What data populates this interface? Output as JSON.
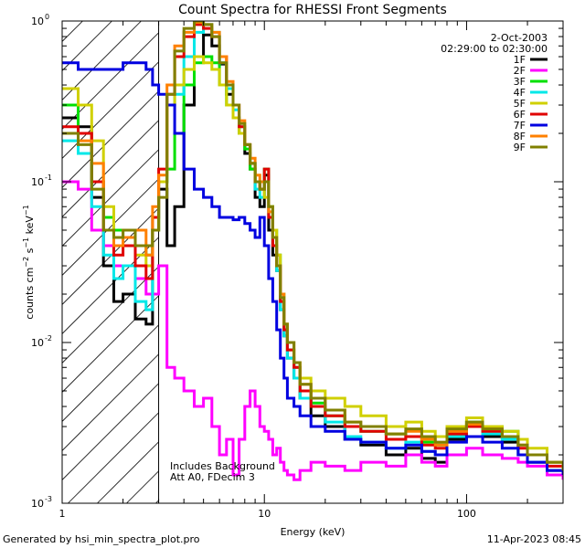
{
  "chart_data": {
    "type": "line",
    "title": "Count Spectra for RHESSI Front Segments",
    "xlabel": "Energy (keV)",
    "ylabel": "counts cm^-2 s^-1 keV^-1",
    "xscale": "log",
    "yscale": "log",
    "xlim": [
      1,
      300
    ],
    "ylim": [
      0.001,
      1
    ],
    "x_ticks": [
      {
        "value": 1,
        "label": "1"
      },
      {
        "value": 10,
        "label": "10"
      },
      {
        "value": 100,
        "label": "100"
      }
    ],
    "y_ticks": [
      {
        "value": 1,
        "base": "10",
        "exp": "0"
      },
      {
        "value": 0.1,
        "base": "10",
        "exp": "-1"
      },
      {
        "value": 0.01,
        "base": "10",
        "exp": "-2"
      },
      {
        "value": 0.001,
        "base": "10",
        "exp": "-3"
      }
    ],
    "date": "2-Oct-2003",
    "time_range": "02:29:00 to 02:30:00",
    "hatched_region_max_energy": 3,
    "annotation_lines": [
      "Includes Background",
      "Att A0, FDecim 3"
    ],
    "footer_left": "Generated by hsi_min_spectra_plot.pro",
    "footer_right": "11-Apr-2023 08:45",
    "series": [
      {
        "name": "1F",
        "color": "#000000",
        "x": [
          1.0,
          1.2,
          1.4,
          1.6,
          1.8,
          2.0,
          2.3,
          2.6,
          2.8,
          3.0,
          3.3,
          3.6,
          4.0,
          4.5,
          5.0,
          5.5,
          6.0,
          6.5,
          7.0,
          7.5,
          8.0,
          8.5,
          9.0,
          9.5,
          10,
          10.5,
          11,
          11.5,
          12,
          12.5,
          13,
          14,
          15,
          17,
          20,
          25,
          30,
          40,
          50,
          60,
          70,
          80,
          100,
          120,
          150,
          180,
          200,
          250,
          300
        ],
        "y": [
          0.25,
          0.22,
          0.08,
          0.03,
          0.018,
          0.02,
          0.014,
          0.013,
          0.05,
          0.09,
          0.04,
          0.07,
          0.3,
          0.6,
          0.82,
          0.7,
          0.54,
          0.35,
          0.25,
          0.2,
          0.15,
          0.12,
          0.08,
          0.07,
          0.11,
          0.05,
          0.035,
          0.028,
          0.016,
          0.011,
          0.008,
          0.006,
          0.0045,
          0.0035,
          0.003,
          0.0025,
          0.0023,
          0.002,
          0.0022,
          0.0019,
          0.0018,
          0.0025,
          0.003,
          0.0026,
          0.0024,
          0.002,
          0.0018,
          0.0016,
          0.0015
        ]
      },
      {
        "name": "2F",
        "color": "#ff00ff",
        "x": [
          1.0,
          1.2,
          1.4,
          1.6,
          1.8,
          2.0,
          2.3,
          2.6,
          2.8,
          3.0,
          3.3,
          3.6,
          4.0,
          4.5,
          5.0,
          5.5,
          6.0,
          6.5,
          7.0,
          7.5,
          8.0,
          8.5,
          9.0,
          9.5,
          10,
          10.5,
          11,
          11.5,
          12,
          12.5,
          13,
          14,
          15,
          17,
          20,
          25,
          30,
          40,
          50,
          60,
          70,
          80,
          100,
          120,
          150,
          180,
          200,
          250,
          300
        ],
        "y": [
          0.1,
          0.09,
          0.05,
          0.04,
          0.03,
          0.03,
          0.025,
          0.02,
          0.02,
          0.03,
          0.007,
          0.006,
          0.005,
          0.004,
          0.0045,
          0.003,
          0.002,
          0.0025,
          0.0015,
          0.0025,
          0.004,
          0.005,
          0.004,
          0.003,
          0.0028,
          0.0025,
          0.002,
          0.0022,
          0.0018,
          0.0016,
          0.0015,
          0.0014,
          0.0016,
          0.0018,
          0.0017,
          0.0016,
          0.0018,
          0.0017,
          0.002,
          0.0018,
          0.0017,
          0.002,
          0.0022,
          0.002,
          0.0019,
          0.0018,
          0.0017,
          0.0015,
          0.0014
        ]
      },
      {
        "name": "3F",
        "color": "#00e000",
        "x": [
          1.0,
          1.2,
          1.4,
          1.6,
          1.8,
          2.0,
          2.3,
          2.6,
          2.8,
          3.0,
          3.3,
          3.6,
          4.0,
          4.5,
          5.0,
          5.5,
          6.0,
          6.5,
          7.0,
          7.5,
          8.0,
          8.5,
          9.0,
          9.5,
          10,
          10.5,
          11,
          11.5,
          12,
          12.5,
          13,
          14,
          15,
          17,
          20,
          25,
          30,
          40,
          50,
          60,
          70,
          80,
          100,
          120,
          150,
          180,
          200,
          250,
          300
        ],
        "y": [
          0.3,
          0.2,
          0.1,
          0.06,
          0.05,
          0.05,
          0.04,
          0.035,
          0.05,
          0.1,
          0.12,
          0.2,
          0.4,
          0.55,
          0.6,
          0.55,
          0.4,
          0.3,
          0.25,
          0.2,
          0.16,
          0.12,
          0.1,
          0.09,
          0.12,
          0.07,
          0.05,
          0.035,
          0.02,
          0.012,
          0.009,
          0.007,
          0.005,
          0.0042,
          0.0035,
          0.003,
          0.0028,
          0.0027,
          0.0026,
          0.0024,
          0.0023,
          0.0028,
          0.0032,
          0.003,
          0.0028,
          0.0025,
          0.002,
          0.0018,
          0.0016
        ]
      },
      {
        "name": "4F",
        "color": "#00e8e8",
        "x": [
          1.0,
          1.2,
          1.4,
          1.6,
          1.8,
          2.0,
          2.3,
          2.6,
          2.8,
          3.0,
          3.3,
          3.6,
          4.0,
          4.5,
          5.0,
          5.5,
          6.0,
          6.5,
          7.0,
          7.5,
          8.0,
          8.5,
          9.0,
          9.5,
          10,
          10.5,
          11,
          11.5,
          12,
          12.5,
          13,
          14,
          15,
          17,
          20,
          25,
          30,
          40,
          50,
          60,
          70,
          80,
          100,
          120,
          150,
          180,
          200,
          250,
          300
        ],
        "y": [
          0.18,
          0.15,
          0.07,
          0.035,
          0.025,
          0.03,
          0.018,
          0.016,
          0.06,
          0.1,
          0.3,
          0.35,
          0.6,
          0.85,
          0.95,
          0.85,
          0.55,
          0.38,
          0.28,
          0.22,
          0.17,
          0.13,
          0.09,
          0.08,
          0.1,
          0.06,
          0.04,
          0.028,
          0.016,
          0.011,
          0.008,
          0.006,
          0.0045,
          0.004,
          0.0032,
          0.0026,
          0.0024,
          0.0022,
          0.0024,
          0.0021,
          0.002,
          0.0026,
          0.003,
          0.0027,
          0.0025,
          0.002,
          0.0018,
          0.0016,
          0.0015
        ]
      },
      {
        "name": "5F",
        "color": "#d0d000",
        "x": [
          1.0,
          1.2,
          1.4,
          1.6,
          1.8,
          2.0,
          2.3,
          2.6,
          2.8,
          3.0,
          3.3,
          3.6,
          4.0,
          4.5,
          5.0,
          5.5,
          6.0,
          6.5,
          7.0,
          7.5,
          8.0,
          8.5,
          9.0,
          9.5,
          10,
          10.5,
          11,
          11.5,
          12,
          12.5,
          13,
          14,
          15,
          17,
          20,
          25,
          30,
          40,
          50,
          60,
          70,
          80,
          100,
          120,
          150,
          180,
          200,
          250,
          300
        ],
        "y": [
          0.38,
          0.3,
          0.18,
          0.07,
          0.045,
          0.05,
          0.035,
          0.03,
          0.05,
          0.1,
          0.3,
          0.4,
          0.5,
          0.6,
          0.55,
          0.5,
          0.4,
          0.3,
          0.25,
          0.2,
          0.17,
          0.13,
          0.1,
          0.09,
          0.08,
          0.07,
          0.05,
          0.035,
          0.02,
          0.013,
          0.01,
          0.0075,
          0.006,
          0.005,
          0.0045,
          0.004,
          0.0035,
          0.003,
          0.0032,
          0.0028,
          0.0026,
          0.003,
          0.0034,
          0.003,
          0.0028,
          0.0025,
          0.0022,
          0.0018,
          0.0016
        ]
      },
      {
        "name": "6F",
        "color": "#e00000",
        "x": [
          1.0,
          1.2,
          1.4,
          1.6,
          1.8,
          2.0,
          2.3,
          2.6,
          2.8,
          3.0,
          3.3,
          3.6,
          4.0,
          4.5,
          5.0,
          5.5,
          6.0,
          6.5,
          7.0,
          7.5,
          8.0,
          8.5,
          9.0,
          9.5,
          10,
          10.5,
          11,
          11.5,
          12,
          12.5,
          13,
          14,
          15,
          17,
          20,
          25,
          30,
          40,
          50,
          60,
          70,
          80,
          100,
          120,
          150,
          180,
          200,
          250,
          300
        ],
        "y": [
          0.22,
          0.2,
          0.1,
          0.05,
          0.035,
          0.04,
          0.03,
          0.025,
          0.06,
          0.12,
          0.35,
          0.6,
          0.8,
          0.95,
          0.9,
          0.8,
          0.6,
          0.4,
          0.3,
          0.22,
          0.17,
          0.13,
          0.1,
          0.09,
          0.12,
          0.06,
          0.04,
          0.03,
          0.018,
          0.012,
          0.009,
          0.007,
          0.005,
          0.004,
          0.0035,
          0.003,
          0.0028,
          0.0025,
          0.0026,
          0.0023,
          0.0022,
          0.0027,
          0.003,
          0.0028,
          0.0026,
          0.0022,
          0.002,
          0.0017,
          0.0016
        ]
      },
      {
        "name": "7F",
        "color": "#0000e0",
        "x": [
          1.0,
          1.2,
          1.4,
          1.6,
          1.8,
          2.0,
          2.3,
          2.6,
          2.8,
          3.0,
          3.3,
          3.6,
          4.0,
          4.5,
          5.0,
          5.5,
          6.0,
          6.5,
          7.0,
          7.5,
          8.0,
          8.5,
          9.0,
          9.5,
          10,
          10.5,
          11,
          11.5,
          12,
          12.5,
          13,
          14,
          15,
          17,
          20,
          25,
          30,
          40,
          50,
          60,
          70,
          80,
          100,
          120,
          150,
          180,
          200,
          250,
          300
        ],
        "y": [
          0.55,
          0.5,
          0.5,
          0.5,
          0.5,
          0.55,
          0.55,
          0.5,
          0.4,
          0.35,
          0.3,
          0.2,
          0.12,
          0.09,
          0.08,
          0.07,
          0.06,
          0.06,
          0.058,
          0.06,
          0.055,
          0.05,
          0.045,
          0.06,
          0.04,
          0.025,
          0.018,
          0.012,
          0.008,
          0.006,
          0.0045,
          0.004,
          0.0035,
          0.003,
          0.0028,
          0.0025,
          0.0024,
          0.0022,
          0.0023,
          0.0021,
          0.002,
          0.0024,
          0.0026,
          0.0024,
          0.0022,
          0.002,
          0.0018,
          0.0016,
          0.0015
        ]
      },
      {
        "name": "8F",
        "color": "#ff8000",
        "x": [
          1.0,
          1.2,
          1.4,
          1.6,
          1.8,
          2.0,
          2.3,
          2.6,
          2.8,
          3.0,
          3.3,
          3.6,
          4.0,
          4.5,
          5.0,
          5.5,
          6.0,
          6.5,
          7.0,
          7.5,
          8.0,
          8.5,
          9.0,
          9.5,
          10,
          10.5,
          11,
          11.5,
          12,
          12.5,
          13,
          14,
          15,
          17,
          20,
          25,
          30,
          40,
          50,
          60,
          70,
          80,
          100,
          120,
          150,
          180,
          200,
          250,
          300
        ],
        "y": [
          0.2,
          0.18,
          0.13,
          0.05,
          0.04,
          0.045,
          0.05,
          0.035,
          0.07,
          0.11,
          0.4,
          0.7,
          0.85,
          0.98,
          0.95,
          0.85,
          0.6,
          0.42,
          0.3,
          0.24,
          0.17,
          0.14,
          0.11,
          0.1,
          0.1,
          0.065,
          0.045,
          0.03,
          0.02,
          0.013,
          0.01,
          0.0075,
          0.0055,
          0.0045,
          0.0038,
          0.0032,
          0.003,
          0.0027,
          0.0028,
          0.0025,
          0.0023,
          0.0028,
          0.0031,
          0.0029,
          0.0026,
          0.0023,
          0.002,
          0.0018,
          0.0016
        ]
      },
      {
        "name": "9F",
        "color": "#808000",
        "x": [
          1.0,
          1.2,
          1.4,
          1.6,
          1.8,
          2.0,
          2.3,
          2.6,
          2.8,
          3.0,
          3.3,
          3.6,
          4.0,
          4.5,
          5.0,
          5.5,
          6.0,
          6.5,
          7.0,
          7.5,
          8.0,
          8.5,
          9.0,
          9.5,
          10,
          10.5,
          11,
          11.5,
          12,
          12.5,
          13,
          14,
          15,
          17,
          20,
          25,
          30,
          40,
          50,
          60,
          70,
          80,
          100,
          120,
          150,
          180,
          200,
          250,
          300
        ],
        "y": [
          0.2,
          0.17,
          0.09,
          0.05,
          0.045,
          0.05,
          0.04,
          0.04,
          0.05,
          0.08,
          0.35,
          0.65,
          0.9,
          1.0,
          0.95,
          0.8,
          0.55,
          0.4,
          0.3,
          0.23,
          0.17,
          0.13,
          0.1,
          0.09,
          0.1,
          0.07,
          0.045,
          0.03,
          0.019,
          0.013,
          0.01,
          0.0075,
          0.0055,
          0.0045,
          0.0038,
          0.0032,
          0.003,
          0.0027,
          0.0029,
          0.0026,
          0.0024,
          0.0029,
          0.0032,
          0.0029,
          0.0026,
          0.0023,
          0.002,
          0.0018,
          0.0016
        ]
      }
    ]
  }
}
